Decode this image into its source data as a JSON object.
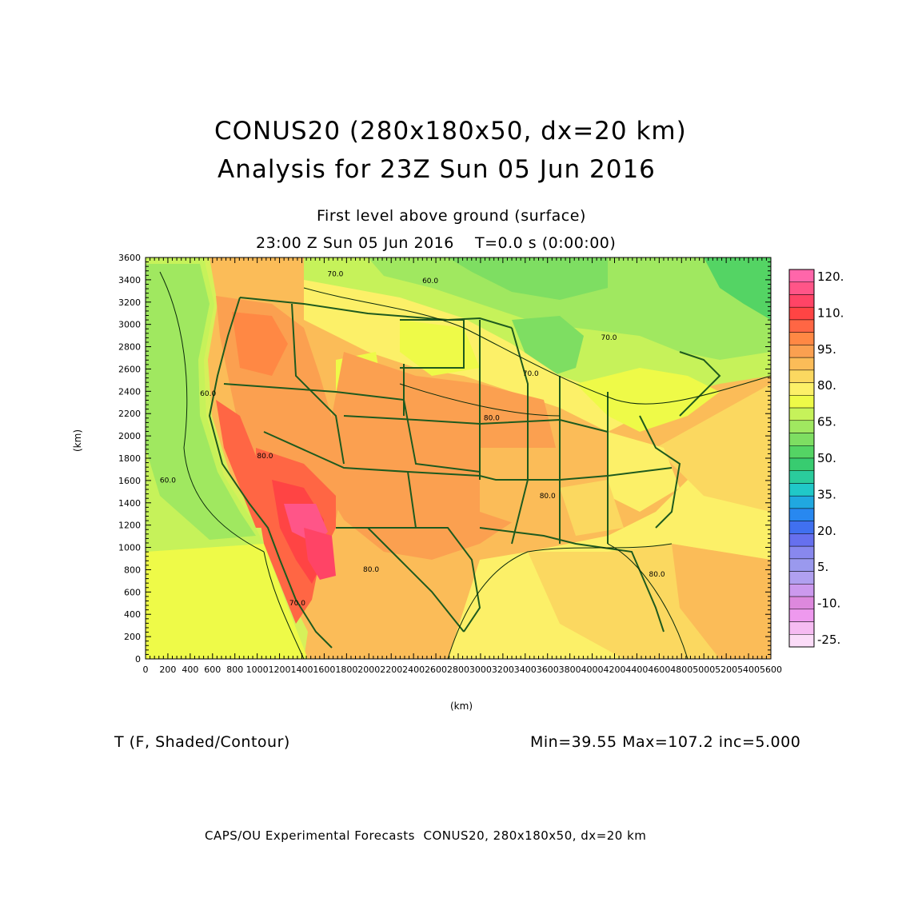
{
  "header": {
    "title_line1": "CONUS20 (280x180x50, dx=20 km)",
    "title_line2": "Analysis for 23Z Sun 05 Jun 2016",
    "subtitle": "First level above ground (surface)",
    "time_line": "23:00 Z Sun 05 Jun 2016    T=0.0 s (0:00:00)"
  },
  "axes": {
    "x_label": "(km)",
    "y_label": "(km)",
    "x_ticks": [
      "0",
      "200",
      "400",
      "600",
      "800",
      "1000",
      "1200",
      "1400",
      "1600",
      "1800",
      "2000",
      "2200",
      "2400",
      "2600",
      "2800",
      "3000",
      "3200",
      "3400",
      "3600",
      "3800",
      "4000",
      "4200",
      "4400",
      "4600",
      "4800",
      "5000",
      "5200",
      "5400",
      "5600"
    ],
    "y_ticks": [
      "0",
      "200",
      "400",
      "600",
      "800",
      "1000",
      "1200",
      "1400",
      "1600",
      "1800",
      "2000",
      "2200",
      "2400",
      "2600",
      "2800",
      "3000",
      "3200",
      "3400",
      "3600"
    ],
    "x_range": [
      0,
      5600
    ],
    "y_range": [
      0,
      3600
    ]
  },
  "contour_labels": [
    {
      "text": "70.0",
      "x": 1700,
      "y": 3430
    },
    {
      "text": "60.0",
      "x": 2550,
      "y": 3370
    },
    {
      "text": "60.0",
      "x": 560,
      "y": 2360
    },
    {
      "text": "60.0",
      "x": 200,
      "y": 1580
    },
    {
      "text": "80.0",
      "x": 3100,
      "y": 2140
    },
    {
      "text": "80.0",
      "x": 1070,
      "y": 1800
    },
    {
      "text": "80.0",
      "x": 2020,
      "y": 780
    },
    {
      "text": "80.0",
      "x": 3600,
      "y": 1440
    },
    {
      "text": "80.0",
      "x": 4580,
      "y": 740
    },
    {
      "text": "70.0",
      "x": 3450,
      "y": 2540
    },
    {
      "text": "70.0",
      "x": 4150,
      "y": 2860
    },
    {
      "text": "70.0",
      "x": 1360,
      "y": 480
    }
  ],
  "colorbar": {
    "labels": [
      "120.",
      "110.",
      "95.",
      "80.",
      "65.",
      "50.",
      "35.",
      "20.",
      "5.",
      "-10.",
      "-25."
    ],
    "colors": [
      "#ff66aa",
      "#ff5588",
      "#ff4466",
      "#ff4444",
      "#ff6644",
      "#ff8844",
      "#fba050",
      "#fbbc58",
      "#fbd860",
      "#fcf068",
      "#eefa48",
      "#c6f25a",
      "#a0e860",
      "#7ede62",
      "#54d464",
      "#38cc70",
      "#2acc9c",
      "#20c8c8",
      "#20a8e0",
      "#2888f0",
      "#4070f0",
      "#6670ee",
      "#8888ee",
      "#9a99ee",
      "#b0a0f0",
      "#cc99ee",
      "#dd88dd",
      "#ee99ee",
      "#f6bbf2",
      "#fbdcf8"
    ]
  },
  "colors": {
    "coast": "#1e5a1e",
    "contour": "#0a2a0a"
  },
  "footer": {
    "field_name": "T (F, Shaded/Contour)",
    "stats": "Min=39.55 Max=107.2 inc=5.000",
    "credit": "CAPS/OU Experimental Forecasts  CONUS20, 280x180x50, dx=20 km"
  }
}
